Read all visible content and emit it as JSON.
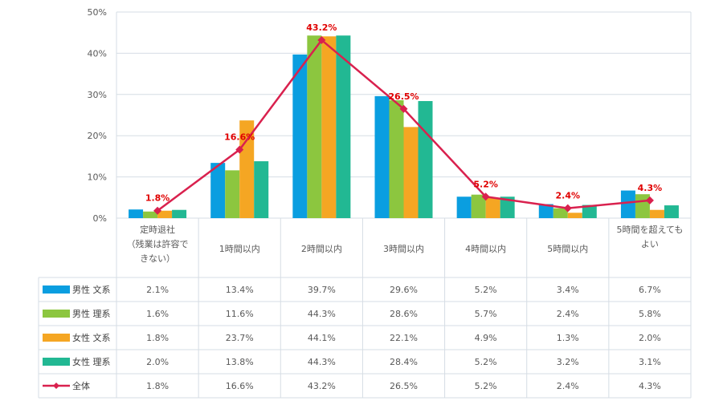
{
  "chart_data": {
    "type": "bar",
    "ylim": [
      0,
      50
    ],
    "yticks": [
      "0%",
      "10%",
      "20%",
      "30%",
      "40%",
      "50%"
    ],
    "grid": true,
    "categories": [
      [
        "定時退社",
        "（残業は許容で",
        "きない）"
      ],
      [
        "1時間以内"
      ],
      [
        "2時間以内"
      ],
      [
        "3時間以内"
      ],
      [
        "4時間以内"
      ],
      [
        "5時間以内"
      ],
      [
        "5時間を超えても",
        "よい"
      ]
    ],
    "series": [
      {
        "name": "男性 文系",
        "color": "#0a9ee0",
        "values": [
          2.1,
          13.4,
          39.7,
          29.6,
          5.2,
          3.4,
          6.7
        ],
        "cells": [
          "2.1%",
          "13.4%",
          "39.7%",
          "29.6%",
          "5.2%",
          "3.4%",
          "6.7%"
        ]
      },
      {
        "name": "男性 理系",
        "color": "#8cc63f",
        "values": [
          1.6,
          11.6,
          44.3,
          28.6,
          5.7,
          2.4,
          5.8
        ],
        "cells": [
          "1.6%",
          "11.6%",
          "44.3%",
          "28.6%",
          "5.7%",
          "2.4%",
          "5.8%"
        ]
      },
      {
        "name": "女性 文系",
        "color": "#f5a623",
        "values": [
          1.8,
          23.7,
          44.1,
          22.1,
          4.9,
          1.3,
          2.0
        ],
        "cells": [
          "1.8%",
          "23.7%",
          "44.1%",
          "22.1%",
          "4.9%",
          "1.3%",
          "2.0%"
        ]
      },
      {
        "name": "女性 理系",
        "color": "#22b893",
        "values": [
          2.0,
          13.8,
          44.3,
          28.4,
          5.2,
          3.2,
          3.1
        ],
        "cells": [
          "2.0%",
          "13.8%",
          "44.3%",
          "28.4%",
          "5.2%",
          "3.2%",
          "3.1%"
        ]
      }
    ],
    "line_series": {
      "name": "全体",
      "type": "line",
      "color": "#d9214e",
      "values": [
        1.8,
        16.6,
        43.2,
        26.5,
        5.2,
        2.4,
        4.3
      ],
      "cells": [
        "1.8%",
        "16.6%",
        "43.2%",
        "26.5%",
        "5.2%",
        "2.4%",
        "4.3%"
      ],
      "point_labels": [
        "1.8%",
        "16.6%",
        "43.2%",
        "26.5%",
        "5.2%",
        "2.4%",
        "4.3%"
      ]
    }
  }
}
